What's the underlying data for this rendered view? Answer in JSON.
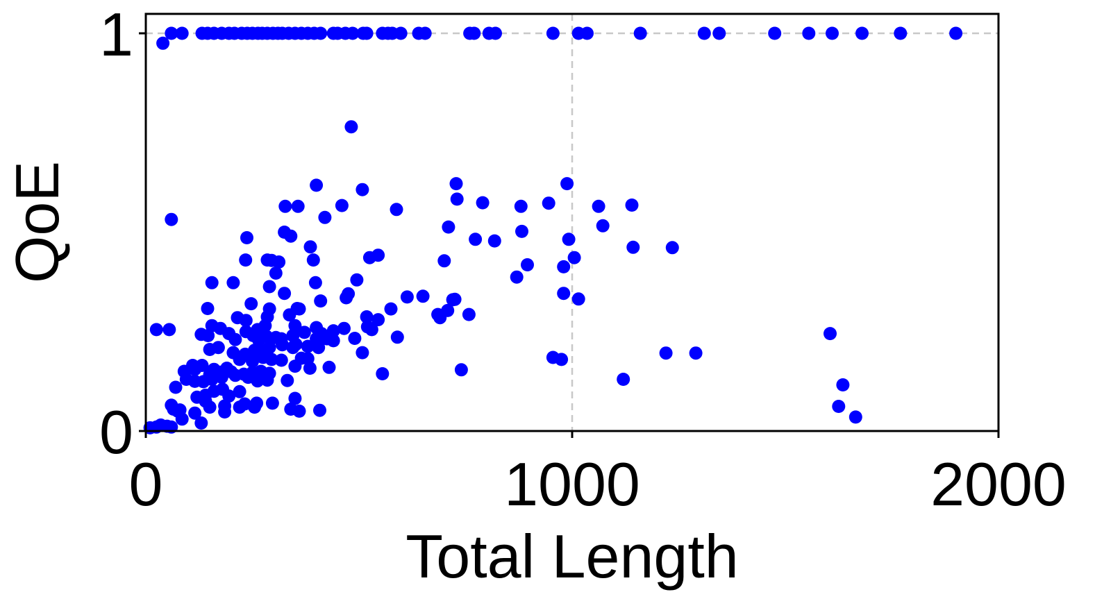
{
  "chart_data": {
    "type": "scatter",
    "title": "",
    "xlabel": "Total Length",
    "ylabel": "QoE",
    "xlim": [
      0,
      2000
    ],
    "ylim": [
      0,
      1.05
    ],
    "xticks": [
      0,
      1000,
      2000
    ],
    "xtick_labels": [
      "0",
      "1000",
      "2000"
    ],
    "yticks": [
      0,
      1
    ],
    "ytick_labels": [
      "0",
      "1"
    ],
    "grid": "dashed at x=1000 and y=1",
    "marker_color": "#0000ff",
    "series": [
      {
        "points": [
          [
            85,
            1.0
          ],
          [
            132,
            1.0
          ],
          [
            145,
            1.0
          ],
          [
            160,
            1.0
          ],
          [
            178,
            1.0
          ],
          [
            195,
            1.0
          ],
          [
            208,
            1.0
          ],
          [
            225,
            1.0
          ],
          [
            238,
            1.0
          ],
          [
            250,
            1.0
          ],
          [
            263,
            1.0
          ],
          [
            273,
            1.0
          ],
          [
            285,
            1.0
          ],
          [
            298,
            1.0
          ],
          [
            310,
            1.0
          ],
          [
            320,
            1.0
          ],
          [
            335,
            1.0
          ],
          [
            350,
            1.0
          ],
          [
            365,
            1.0
          ],
          [
            380,
            1.0
          ],
          [
            395,
            1.0
          ],
          [
            410,
            1.0
          ],
          [
            440,
            1.0
          ],
          [
            450,
            1.0
          ],
          [
            468,
            1.0
          ],
          [
            485,
            1.0
          ],
          [
            510,
            1.0
          ],
          [
            518,
            1.0
          ],
          [
            555,
            1.0
          ],
          [
            568,
            1.0
          ],
          [
            578,
            1.0
          ],
          [
            598,
            1.0
          ],
          [
            640,
            1.0
          ],
          [
            655,
            1.0
          ],
          [
            760,
            1.0
          ],
          [
            770,
            1.0
          ],
          [
            805,
            1.0
          ],
          [
            820,
            1.0
          ],
          [
            955,
            1.0
          ],
          [
            1015,
            1.0
          ],
          [
            1035,
            1.0
          ],
          [
            1160,
            1.0
          ],
          [
            1310,
            1.0
          ],
          [
            1345,
            1.0
          ],
          [
            1475,
            1.0
          ],
          [
            1555,
            1.0
          ],
          [
            1610,
            1.0
          ],
          [
            1680,
            1.0
          ],
          [
            1770,
            1.0
          ],
          [
            1900,
            1.0
          ],
          [
            60,
            1.0
          ],
          [
            40,
            0.975
          ],
          [
            482,
            0.765
          ],
          [
            728,
            0.622
          ],
          [
            400,
            0.618
          ],
          [
            508,
            0.607
          ],
          [
            460,
            0.567
          ],
          [
            327,
            0.565
          ],
          [
            357,
            0.565
          ],
          [
            588,
            0.557
          ],
          [
            730,
            0.583
          ],
          [
            790,
            0.574
          ],
          [
            880,
            0.565
          ],
          [
            945,
            0.573
          ],
          [
            988,
            0.622
          ],
          [
            1062,
            0.565
          ],
          [
            1140,
            0.568
          ],
          [
            60,
            0.532
          ],
          [
            420,
            0.537
          ],
          [
            325,
            0.5
          ],
          [
            340,
            0.49
          ],
          [
            710,
            0.513
          ],
          [
            1072,
            0.516
          ],
          [
            237,
            0.486
          ],
          [
            773,
            0.482
          ],
          [
            818,
            0.478
          ],
          [
            882,
            0.502
          ],
          [
            992,
            0.482
          ],
          [
            1143,
            0.462
          ],
          [
            1235,
            0.461
          ],
          [
            386,
            0.463
          ],
          [
            545,
            0.442
          ],
          [
            525,
            0.436
          ],
          [
            234,
            0.43
          ],
          [
            285,
            0.43
          ],
          [
            295,
            0.429
          ],
          [
            312,
            0.425
          ],
          [
            393,
            0.43
          ],
          [
            700,
            0.428
          ],
          [
            895,
            0.418
          ],
          [
            1005,
            0.436
          ],
          [
            980,
            0.413
          ],
          [
            155,
            0.373
          ],
          [
            205,
            0.373
          ],
          [
            305,
            0.397
          ],
          [
            398,
            0.373
          ],
          [
            495,
            0.38
          ],
          [
            870,
            0.387
          ],
          [
            1015,
            0.332
          ],
          [
            290,
            0.363
          ],
          [
            325,
            0.346
          ],
          [
            247,
            0.32
          ],
          [
            355,
            0.308
          ],
          [
            410,
            0.327
          ],
          [
            470,
            0.335
          ],
          [
            725,
            0.331
          ],
          [
            145,
            0.308
          ],
          [
            290,
            0.307
          ],
          [
            360,
            0.307
          ],
          [
            475,
            0.345
          ],
          [
            613,
            0.337
          ],
          [
            650,
            0.339
          ],
          [
            980,
            0.346
          ],
          [
            215,
            0.285
          ],
          [
            235,
            0.278
          ],
          [
            285,
            0.287
          ],
          [
            337,
            0.292
          ],
          [
            545,
            0.28
          ],
          [
            518,
            0.287
          ],
          [
            708,
            0.303
          ],
          [
            758,
            0.293
          ],
          [
            155,
            0.265
          ],
          [
            175,
            0.258
          ],
          [
            195,
            0.245
          ],
          [
            235,
            0.25
          ],
          [
            262,
            0.255
          ],
          [
            280,
            0.265
          ],
          [
            350,
            0.265
          ],
          [
            400,
            0.26
          ],
          [
            440,
            0.252
          ],
          [
            465,
            0.258
          ],
          [
            520,
            0.262
          ],
          [
            575,
            0.307
          ],
          [
            685,
            0.293
          ],
          [
            690,
            0.285
          ],
          [
            720,
            0.33
          ],
          [
            25,
            0.255
          ],
          [
            55,
            0.255
          ],
          [
            130,
            0.243
          ],
          [
            146,
            0.24
          ],
          [
            210,
            0.23
          ],
          [
            252,
            0.24
          ],
          [
            265,
            0.228
          ],
          [
            283,
            0.238
          ],
          [
            305,
            0.235
          ],
          [
            318,
            0.232
          ],
          [
            345,
            0.24
          ],
          [
            372,
            0.248
          ],
          [
            400,
            0.232
          ],
          [
            412,
            0.245
          ],
          [
            425,
            0.232
          ],
          [
            490,
            0.233
          ],
          [
            530,
            0.255
          ],
          [
            150,
            0.205
          ],
          [
            170,
            0.21
          ],
          [
            205,
            0.197
          ],
          [
            233,
            0.193
          ],
          [
            255,
            0.203
          ],
          [
            275,
            0.2
          ],
          [
            290,
            0.21
          ],
          [
            320,
            0.217
          ],
          [
            345,
            0.21
          ],
          [
            352,
            0.218
          ],
          [
            380,
            0.213
          ],
          [
            405,
            0.21
          ],
          [
            440,
            0.227
          ],
          [
            110,
            0.165
          ],
          [
            132,
            0.165
          ],
          [
            160,
            0.155
          ],
          [
            190,
            0.158
          ],
          [
            220,
            0.18
          ],
          [
            250,
            0.175
          ],
          [
            275,
            0.185
          ],
          [
            295,
            0.18
          ],
          [
            318,
            0.178
          ],
          [
            365,
            0.183
          ],
          [
            380,
            0.182
          ],
          [
            508,
            0.197
          ],
          [
            590,
            0.236
          ],
          [
            1220,
            0.196
          ],
          [
            1290,
            0.196
          ],
          [
            1605,
            0.245
          ],
          [
            955,
            0.185
          ],
          [
            975,
            0.18
          ],
          [
            90,
            0.15
          ],
          [
            115,
            0.155
          ],
          [
            150,
            0.142
          ],
          [
            175,
            0.148
          ],
          [
            200,
            0.149
          ],
          [
            230,
            0.143
          ],
          [
            250,
            0.147
          ],
          [
            270,
            0.15
          ],
          [
            290,
            0.145
          ],
          [
            350,
            0.163
          ],
          [
            385,
            0.158
          ],
          [
            430,
            0.16
          ],
          [
            555,
            0.144
          ],
          [
            740,
            0.154
          ],
          [
            1120,
            0.13
          ],
          [
            1635,
            0.116
          ],
          [
            95,
            0.13
          ],
          [
            115,
            0.125
          ],
          [
            135,
            0.124
          ],
          [
            155,
            0.13
          ],
          [
            178,
            0.135
          ],
          [
            210,
            0.14
          ],
          [
            240,
            0.135
          ],
          [
            262,
            0.126
          ],
          [
            285,
            0.128
          ],
          [
            332,
            0.127
          ],
          [
            70,
            0.11
          ],
          [
            120,
            0.085
          ],
          [
            140,
            0.09
          ],
          [
            160,
            0.1
          ],
          [
            180,
            0.105
          ],
          [
            195,
            0.088
          ],
          [
            220,
            0.099
          ],
          [
            350,
            0.082
          ],
          [
            60,
            0.065
          ],
          [
            80,
            0.053
          ],
          [
            140,
            0.075
          ],
          [
            185,
            0.063
          ],
          [
            232,
            0.068
          ],
          [
            255,
            0.06
          ],
          [
            408,
            0.052
          ],
          [
            65,
            0.055
          ],
          [
            75,
            0.05
          ],
          [
            115,
            0.045
          ],
          [
            150,
            0.06
          ],
          [
            185,
            0.048
          ],
          [
            220,
            0.06
          ],
          [
            260,
            0.07
          ],
          [
            297,
            0.07
          ],
          [
            340,
            0.055
          ],
          [
            360,
            0.05
          ],
          [
            1625,
            0.062
          ],
          [
            1665,
            0.035
          ],
          [
            10,
            0.008
          ],
          [
            25,
            0.01
          ],
          [
            35,
            0.015
          ],
          [
            50,
            0.012
          ],
          [
            60,
            0.01
          ],
          [
            85,
            0.03
          ],
          [
            130,
            0.02
          ]
        ]
      }
    ]
  }
}
